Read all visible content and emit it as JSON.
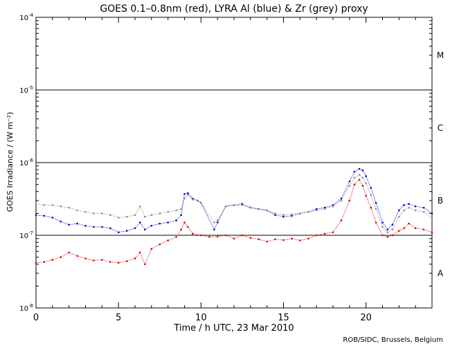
{
  "chart_data": {
    "type": "scatter",
    "title": "GOES 0.1–0.8nm (red), LYRA Al (blue) & Zr (grey) proxy",
    "xlabel": "Time / h UTC, 23 Mar 2010",
    "ylabel": "GOES Irradiance / (W m⁻²)",
    "xlim": [
      0,
      24
    ],
    "ylim": [
      1e-08,
      0.0001
    ],
    "yscale": "log",
    "x_ticks": [
      0,
      5,
      10,
      15,
      20
    ],
    "x_tick_labels": [
      "0",
      "5",
      "10",
      "15",
      "20"
    ],
    "y_ticks": [
      {
        "base": "10",
        "exp": "-8"
      },
      {
        "base": "10",
        "exp": "-7"
      },
      {
        "base": "10",
        "exp": "-6"
      },
      {
        "base": "10",
        "exp": "-5"
      },
      {
        "base": "10",
        "exp": "-4"
      }
    ],
    "flare_classes": [
      {
        "label": "A",
        "value": 3e-08
      },
      {
        "label": "B",
        "value": 3e-07
      },
      {
        "label": "C",
        "value": 3e-06
      },
      {
        "label": "M",
        "value": 3e-05
      }
    ],
    "threshold_lines": [
      1e-07,
      1e-06,
      1e-05
    ],
    "credit": "ROB/SIDC, Brussels, Belgium",
    "series": [
      {
        "color": "#d40000",
        "x": [
          0.0,
          0.5,
          1.0,
          1.5,
          2.0,
          2.5,
          3.0,
          3.5,
          4.0,
          4.5,
          5.0,
          5.5,
          6.0,
          6.3,
          6.6,
          7.0,
          7.5,
          8.0,
          8.5,
          8.8,
          9.0,
          9.2,
          9.5,
          10.0,
          10.5,
          11.0,
          11.5,
          12.0,
          12.5,
          13.0,
          13.5,
          14.0,
          14.5,
          15.0,
          15.5,
          16.0,
          16.5,
          17.0,
          17.5,
          18.0,
          18.5,
          19.0,
          19.3,
          19.6,
          19.8,
          20.0,
          20.3,
          20.6,
          21.0,
          21.3,
          21.6,
          22.0,
          22.3,
          22.6,
          23.0,
          23.5,
          24.0
        ],
        "y": [
          4.2e-08,
          4.3e-08,
          4.6e-08,
          5e-08,
          5.8e-08,
          5.2e-08,
          4.8e-08,
          4.5e-08,
          4.6e-08,
          4.3e-08,
          4.2e-08,
          4.4e-08,
          4.8e-08,
          5.8e-08,
          4e-08,
          6.5e-08,
          7.5e-08,
          8.5e-08,
          9.5e-08,
          1.2e-07,
          1.5e-07,
          1.3e-07,
          1.05e-07,
          1e-07,
          9.5e-08,
          9.6e-08,
          1e-07,
          9e-08,
          1e-07,
          9.2e-08,
          8.8e-08,
          8.2e-08,
          8.8e-08,
          8.6e-08,
          9e-08,
          8.5e-08,
          9e-08,
          1e-07,
          1.05e-07,
          1.1e-07,
          1.6e-07,
          3e-07,
          5e-07,
          5.8e-07,
          4.8e-07,
          3.5e-07,
          2.4e-07,
          1.5e-07,
          1e-07,
          9.5e-08,
          1e-07,
          1.15e-07,
          1.25e-07,
          1.45e-07,
          1.25e-07,
          1.2e-07,
          1.1e-07
        ]
      },
      {
        "color": "#0000c8",
        "x": [
          0.0,
          0.5,
          1.0,
          1.5,
          2.0,
          2.5,
          3.0,
          3.5,
          4.0,
          4.5,
          5.0,
          5.5,
          6.0,
          6.3,
          6.6,
          7.0,
          7.5,
          8.0,
          8.5,
          8.8,
          9.0,
          9.2,
          9.5,
          9.8,
          10.0,
          10.8,
          11.0,
          11.5,
          12.0,
          12.5,
          13.0,
          13.5,
          14.0,
          14.5,
          15.0,
          15.5,
          16.0,
          16.5,
          17.0,
          17.5,
          18.0,
          18.5,
          19.0,
          19.3,
          19.6,
          19.8,
          20.0,
          20.3,
          20.6,
          21.0,
          21.3,
          21.6,
          22.0,
          22.3,
          22.6,
          23.0,
          23.5,
          24.0
        ],
        "y": [
          1.9e-07,
          1.85e-07,
          1.75e-07,
          1.55e-07,
          1.4e-07,
          1.45e-07,
          1.35e-07,
          1.3e-07,
          1.3e-07,
          1.25e-07,
          1.1e-07,
          1.15e-07,
          1.25e-07,
          1.5e-07,
          1.2e-07,
          1.35e-07,
          1.45e-07,
          1.5e-07,
          1.6e-07,
          1.9e-07,
          3.7e-07,
          3.8e-07,
          3.2e-07,
          3e-07,
          2.8e-07,
          1.2e-07,
          1.5e-07,
          2.5e-07,
          2.6e-07,
          2.7e-07,
          2.4e-07,
          2.3e-07,
          2.2e-07,
          1.9e-07,
          1.8e-07,
          1.85e-07,
          2e-07,
          2.1e-07,
          2.3e-07,
          2.4e-07,
          2.6e-07,
          3.2e-07,
          5.5e-07,
          7.5e-07,
          8.2e-07,
          7.8e-07,
          6.5e-07,
          4.5e-07,
          2.8e-07,
          1.5e-07,
          1.2e-07,
          1.4e-07,
          2.2e-07,
          2.6e-07,
          2.7e-07,
          2.5e-07,
          2.4e-07,
          2e-07
        ]
      },
      {
        "color": "#8c8c8c",
        "x": [
          0.0,
          0.5,
          1.0,
          1.5,
          2.0,
          2.5,
          3.0,
          3.5,
          4.0,
          4.5,
          5.0,
          5.5,
          6.0,
          6.3,
          6.6,
          7.0,
          7.5,
          8.0,
          8.5,
          8.8,
          9.0,
          9.2,
          9.5,
          9.8,
          10.0,
          10.8,
          11.0,
          11.5,
          12.0,
          12.5,
          13.0,
          13.5,
          14.0,
          14.5,
          15.0,
          15.5,
          16.0,
          16.5,
          17.0,
          17.5,
          18.0,
          18.5,
          19.0,
          19.3,
          19.6,
          19.8,
          20.0,
          20.3,
          20.6,
          21.0,
          21.3,
          21.6,
          22.0,
          22.3,
          22.6,
          23.0,
          23.5,
          24.0
        ],
        "y": [
          2.7e-07,
          2.6e-07,
          2.6e-07,
          2.5e-07,
          2.4e-07,
          2.2e-07,
          2.1e-07,
          2e-07,
          2e-07,
          1.9e-07,
          1.75e-07,
          1.8e-07,
          1.9e-07,
          2.5e-07,
          1.8e-07,
          1.9e-07,
          2e-07,
          2.1e-07,
          2.2e-07,
          2.3e-07,
          3.2e-07,
          3.6e-07,
          3.1e-07,
          3e-07,
          2.8e-07,
          1.5e-07,
          1.6e-07,
          2.5e-07,
          2.6e-07,
          2.6e-07,
          2.4e-07,
          2.3e-07,
          2.2e-07,
          2e-07,
          1.9e-07,
          1.95e-07,
          2e-07,
          2.1e-07,
          2.2e-07,
          2.3e-07,
          2.5e-07,
          3e-07,
          4.8e-07,
          6.2e-07,
          6.8e-07,
          6.2e-07,
          5.2e-07,
          3.6e-07,
          2.3e-07,
          1.3e-07,
          1.1e-07,
          1.2e-07,
          1.8e-07,
          2.2e-07,
          2.4e-07,
          2.2e-07,
          2.1e-07,
          1.7e-07
        ]
      }
    ]
  }
}
